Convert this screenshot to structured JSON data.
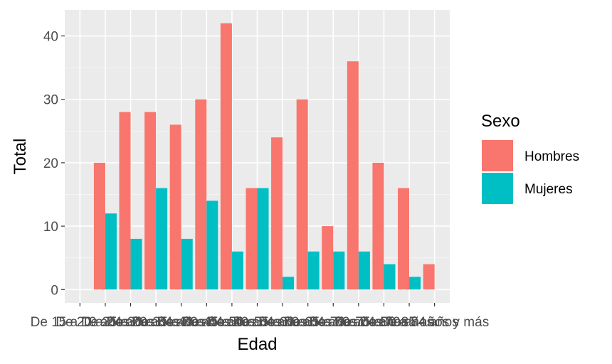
{
  "chart_data": {
    "type": "bar",
    "title": "",
    "xlabel": "Edad",
    "ylabel": "Total",
    "ylim": [
      -2.1,
      44.1
    ],
    "yticks": [
      0,
      10,
      20,
      30,
      40
    ],
    "grid": true,
    "legend_position": "right",
    "legend_title": "Sexo",
    "categories": [
      "De 15 a 19 años",
      "De 20 a 24 años",
      "De 25 a 29 años",
      "De 30 a 34 años",
      "De 35 a 39 años",
      "De 40 a 44 años",
      "De 45 a 49 años",
      "De 50 a 54 años",
      "De 55 a 59 años",
      "De 60 a 64 años",
      "De 65 a 69 años",
      "De 70 a 74 años",
      "De 75 a 79 años",
      "De 80 a 84 años",
      "De 85 años y más"
    ],
    "series": [
      {
        "name": "Hombres",
        "color": "#F8766D",
        "values": [
          0,
          20,
          28,
          28,
          26,
          30,
          42,
          16,
          24,
          30,
          10,
          36,
          20,
          16,
          4
        ]
      },
      {
        "name": "Mujeres",
        "color": "#00BFC4",
        "values": [
          0,
          12,
          8,
          16,
          8,
          14,
          6,
          16,
          2,
          6,
          6,
          6,
          4,
          2,
          0
        ]
      }
    ]
  },
  "colors": {
    "panel_background": "#EBEBEB",
    "grid_major": "#FFFFFF",
    "grid_minor": "#F5F5F5",
    "tick_mark": "#333333",
    "tick_text": "#4D4D4D"
  }
}
